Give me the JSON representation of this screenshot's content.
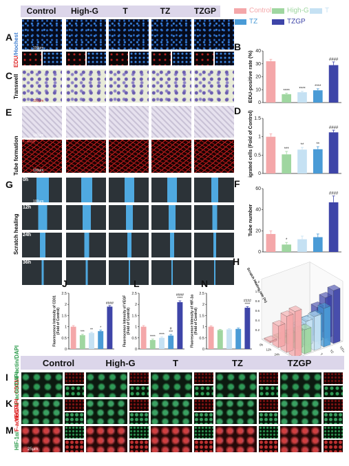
{
  "colors": {
    "control": "#f4a7a9",
    "highg": "#9fd6a0",
    "t": "#c5e1f3",
    "tz": "#4a9bd6",
    "tzgp": "#3e45a8",
    "header_bg": "#dcd6ea"
  },
  "top": {
    "conditions": [
      "Control",
      "High-G",
      "T",
      "TZ",
      "TZGP"
    ]
  },
  "legend": {
    "items": [
      {
        "label": "Control",
        "key": "control"
      },
      {
        "label": "High-G",
        "key": "highg"
      },
      {
        "label": "T",
        "key": "t"
      },
      {
        "label": "TZ",
        "key": "tz"
      },
      {
        "label": "TZGP",
        "key": "tzgp"
      }
    ]
  },
  "panels": {
    "A": {
      "letter": "A",
      "label": "EDU/Hochest",
      "scale": "100μm"
    },
    "B": {
      "letter": "B"
    },
    "C": {
      "letter": "C",
      "label": "Transwell",
      "scale": "100μm"
    },
    "D": {
      "letter": "D"
    },
    "E": {
      "letter": "E",
      "label": "Tube formation",
      "sub": "F-actin",
      "scale": "100μm",
      "scale2": "100μm"
    },
    "F": {
      "letter": "F"
    },
    "G": {
      "letter": "G",
      "label": "Scratch healing",
      "times": [
        "0h",
        "12h",
        "24h",
        "36h"
      ],
      "scale": "100μm"
    },
    "H": {
      "letter": "H"
    },
    "J": {
      "letter": "J"
    },
    "L": {
      "letter": "L"
    },
    "N": {
      "letter": "N"
    },
    "I": {
      "letter": "I",
      "label_a": "CD31/",
      "label_b": "F-actin/DAPI"
    },
    "K": {
      "letter": "K",
      "label_a": "VEGF/",
      "label_b": "F-actin/DAPI"
    },
    "M": {
      "letter": "M",
      "label_a": "HIF-1α/",
      "label_b": "F-actin/DAPI",
      "scale": "25μm"
    }
  },
  "bottom": {
    "conditions": [
      "Control",
      "High-G",
      "T",
      "TZ",
      "TZGP"
    ]
  },
  "chart_data": [
    {
      "id": "B",
      "type": "bar",
      "categories": [
        "Control",
        "High-G",
        "T",
        "TZ",
        "TZGP"
      ],
      "values": [
        32,
        6.5,
        8,
        9.5,
        29
      ],
      "errors": [
        1.5,
        0.8,
        0.8,
        1.2,
        2.5
      ],
      "ylabel": "EDU-positive rate (%)",
      "ylim": [
        0,
        40
      ],
      "yticks": [
        0,
        10,
        20,
        30,
        40
      ],
      "annotations": [
        "",
        "****",
        "****",
        "****",
        "####"
      ]
    },
    {
      "id": "D",
      "type": "bar",
      "categories": [
        "Control",
        "High-G",
        "T",
        "TZ",
        "TZGP"
      ],
      "values": [
        1.0,
        0.52,
        0.65,
        0.66,
        1.12
      ],
      "errors": [
        0.08,
        0.08,
        0.06,
        0.07,
        0.06
      ],
      "ylabel": "Migrated cells (Fold of Control)",
      "ylim": [
        0,
        1.5
      ],
      "yticks": [
        0.0,
        0.5,
        1.0,
        1.5
      ],
      "annotations": [
        "",
        "***",
        "**",
        "**",
        "####"
      ]
    },
    {
      "id": "F",
      "type": "bar",
      "categories": [
        "Control",
        "High-G",
        "T",
        "TZ",
        "TZGP"
      ],
      "values": [
        17,
        7,
        12,
        14,
        47
      ],
      "errors": [
        3,
        2,
        3,
        3,
        6
      ],
      "ylabel": "Tube number",
      "ylim": [
        0,
        60
      ],
      "yticks": [
        0,
        20,
        40,
        60
      ],
      "annotations": [
        "",
        "*",
        "",
        "",
        "####"
      ]
    },
    {
      "id": "J",
      "type": "bar",
      "categories": [
        "Control",
        "High-G",
        "T",
        "TZ",
        "TZGP"
      ],
      "values": [
        1.0,
        0.62,
        0.72,
        0.8,
        1.9
      ],
      "errors": [
        0.05,
        0.04,
        0.04,
        0.05,
        0.05
      ],
      "ylabel": "Fluorescence Intensity of CD31 (Fold of Control)",
      "ylim": [
        0,
        2.5
      ],
      "yticks": [
        0.0,
        0.5,
        1.0,
        1.5,
        2.0,
        2.5
      ],
      "annotations": [
        "",
        "***",
        "**",
        "*",
        "####"
      ]
    },
    {
      "id": "L",
      "type": "bar",
      "categories": [
        "Control",
        "High-G",
        "T",
        "TZ",
        "TZGP"
      ],
      "values": [
        1.0,
        0.4,
        0.5,
        0.6,
        2.1
      ],
      "errors": [
        0.05,
        0.04,
        0.04,
        0.05,
        0.06
      ],
      "ylabel": "Fluorescence Intensity of VEGF (Fold of Control)",
      "ylim": [
        0,
        2.5
      ],
      "yticks": [
        0.0,
        0.5,
        1.0,
        1.5,
        2.0,
        2.5
      ],
      "annotations": [
        "",
        "****",
        "****",
        "# ***",
        "#### ****"
      ]
    },
    {
      "id": "N",
      "type": "bar",
      "categories": [
        "Control",
        "High-G",
        "T",
        "TZ",
        "TZGP"
      ],
      "values": [
        1.0,
        0.85,
        0.88,
        0.9,
        1.85
      ],
      "errors": [
        0.04,
        0.03,
        0.03,
        0.04,
        0.05
      ],
      "ylabel": "Fluorescence Intensity of HIF-1α (Fold of Control)",
      "ylim": [
        0,
        2.5
      ],
      "yticks": [
        0.0,
        0.5,
        1.0,
        1.5,
        2.0,
        2.5
      ],
      "annotations": [
        "",
        "",
        "",
        "",
        "#### ****"
      ]
    },
    {
      "id": "H",
      "type": "bar",
      "series_labels": [
        "Control",
        "High-G",
        "T",
        "TZ",
        "TZGP"
      ],
      "time_labels": [
        "0h",
        "12h",
        "24h",
        "36h"
      ],
      "zlabel": "Scratch healing rate (%)",
      "values": [
        [
          0,
          0.45,
          0.75,
          0.95
        ],
        [
          0,
          0.2,
          0.35,
          0.5
        ],
        [
          0,
          0.3,
          0.5,
          0.7
        ],
        [
          0,
          0.35,
          0.55,
          0.8
        ],
        [
          0,
          0.55,
          0.85,
          1.1
        ]
      ],
      "zticks": [
        "0.2",
        "0.4",
        "0.6",
        "0.8",
        "1.0",
        "1.2"
      ]
    }
  ]
}
